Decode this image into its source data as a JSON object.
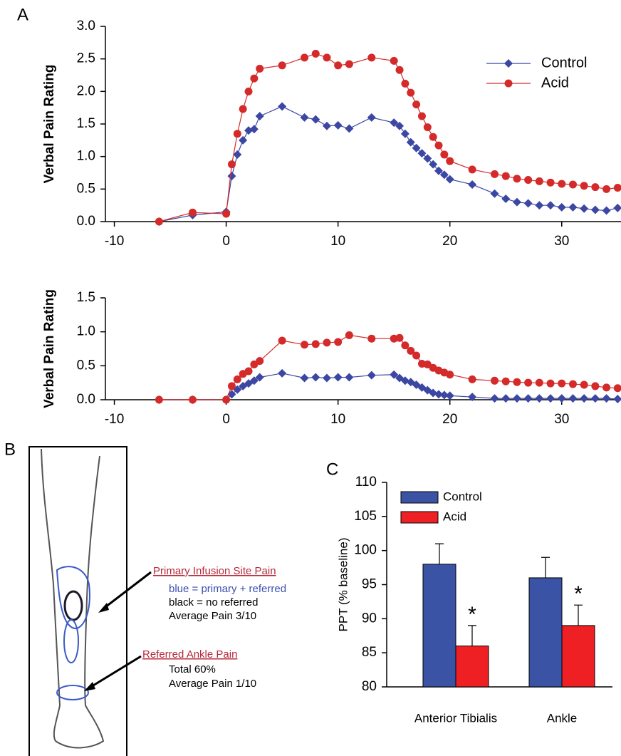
{
  "panel_labels": [
    "A",
    "B",
    "C"
  ],
  "chart_data": [
    {
      "type": "line",
      "y_label": "Verbal Pain Rating",
      "xlim": [
        -10.8,
        35.3
      ],
      "xticks": [
        -10,
        0,
        10,
        20,
        30
      ],
      "ylim": [
        0,
        3
      ],
      "yticks": [
        {
          "value": 0,
          "label": "0.0"
        },
        0.5,
        {
          "value": 1,
          "label": "1.0"
        },
        1.5,
        {
          "value": 2,
          "label": "2.0"
        },
        2.5,
        {
          "value": 3,
          "label": "3.0"
        }
      ],
      "legend": "upper right",
      "x": [
        -6,
        -3,
        0,
        0.5,
        1,
        1.5,
        2,
        2.5,
        3,
        5,
        7,
        8,
        9,
        10,
        11,
        13,
        15,
        15.5,
        16,
        16.5,
        17,
        17.5,
        18,
        18.5,
        19,
        19.5,
        20,
        22,
        24,
        25,
        26,
        27,
        28,
        29,
        30,
        31,
        32,
        33,
        34,
        35
      ],
      "series": [
        {
          "name": "Control",
          "color": "#3b47a3",
          "marker": "diamond",
          "values": [
            0,
            0.1,
            0.15,
            0.7,
            1.03,
            1.25,
            1.4,
            1.42,
            1.62,
            1.77,
            1.6,
            1.57,
            1.47,
            1.48,
            1.43,
            1.6,
            1.52,
            1.47,
            1.35,
            1.22,
            1.13,
            1.05,
            0.97,
            0.88,
            0.78,
            0.72,
            0.65,
            0.57,
            0.43,
            0.35,
            0.3,
            0.28,
            0.25,
            0.25,
            0.22,
            0.22,
            0.2,
            0.18,
            0.17,
            0.21
          ]
        },
        {
          "name": "Acid",
          "color": "#d42a2a",
          "marker": "circle",
          "values": [
            0,
            0.14,
            0.12,
            0.88,
            1.35,
            1.73,
            2.0,
            2.2,
            2.35,
            2.4,
            2.52,
            2.58,
            2.52,
            2.4,
            2.42,
            2.52,
            2.47,
            2.33,
            2.12,
            1.98,
            1.8,
            1.62,
            1.45,
            1.3,
            1.17,
            1.03,
            0.93,
            0.8,
            0.73,
            0.7,
            0.66,
            0.64,
            0.62,
            0.6,
            0.58,
            0.57,
            0.55,
            0.53,
            0.5,
            0.52
          ]
        }
      ]
    },
    {
      "type": "line",
      "y_label": "Verbal Pain Rating",
      "xlim": [
        -10.8,
        35.3
      ],
      "xticks": [
        -10,
        0,
        10,
        20,
        30
      ],
      "ylim": [
        0,
        1.5
      ],
      "yticks": [
        {
          "value": 0,
          "label": "0.0"
        },
        0.5,
        {
          "value": 1,
          "label": "1.0"
        },
        1.5
      ],
      "x": [
        -6,
        -3,
        0,
        0.5,
        1,
        1.5,
        2,
        2.5,
        3,
        5,
        7,
        8,
        9,
        10,
        11,
        13,
        15,
        15.5,
        16,
        16.5,
        17,
        17.5,
        18,
        18.5,
        19,
        19.5,
        20,
        22,
        24,
        25,
        26,
        27,
        28,
        29,
        30,
        31,
        32,
        33,
        34,
        35
      ],
      "series": [
        {
          "name": "Control",
          "color": "#3b47a3",
          "marker": "diamond",
          "values": [
            0,
            0,
            0,
            0.08,
            0.15,
            0.2,
            0.24,
            0.28,
            0.33,
            0.39,
            0.32,
            0.33,
            0.32,
            0.33,
            0.33,
            0.36,
            0.37,
            0.32,
            0.28,
            0.26,
            0.22,
            0.18,
            0.14,
            0.1,
            0.08,
            0.07,
            0.06,
            0.04,
            0.02,
            0.02,
            0.02,
            0.02,
            0.02,
            0.02,
            0.02,
            0.02,
            0.02,
            0.02,
            0.02,
            0.01
          ]
        },
        {
          "name": "Acid",
          "color": "#d42a2a",
          "marker": "circle",
          "values": [
            0,
            0,
            0,
            0.2,
            0.3,
            0.38,
            0.42,
            0.52,
            0.57,
            0.87,
            0.81,
            0.82,
            0.84,
            0.85,
            0.95,
            0.9,
            0.9,
            0.91,
            0.8,
            0.72,
            0.65,
            0.53,
            0.52,
            0.47,
            0.43,
            0.4,
            0.37,
            0.3,
            0.28,
            0.27,
            0.26,
            0.25,
            0.25,
            0.24,
            0.24,
            0.23,
            0.22,
            0.2,
            0.18,
            0.17
          ]
        }
      ]
    },
    {
      "type": "bar",
      "y_label": "PPT (% baseline)",
      "categories": [
        "Anterior Tibialis",
        "Ankle"
      ],
      "ylim": [
        80,
        110
      ],
      "yticks": [
        80,
        85,
        90,
        95,
        100,
        105,
        110
      ],
      "legend": "upper left",
      "series": [
        {
          "name": "Control",
          "color": "#3a53a4",
          "values": [
            98,
            96
          ],
          "errors": [
            3,
            3
          ]
        },
        {
          "name": "Acid",
          "color": "#ee2024",
          "values": [
            86,
            89
          ],
          "errors": [
            3,
            3
          ],
          "significance": [
            "*",
            "*"
          ]
        }
      ]
    }
  ],
  "diagram": {
    "primary": {
      "title": "Primary Infusion Site Pain",
      "lines": [
        "blue = primary + referred",
        "black = no referred",
        "Average Pain 3/10"
      ]
    },
    "referred": {
      "title": "Referred Ankle Pain",
      "lines": [
        "Total 60%",
        "Average Pain 1/10"
      ]
    }
  }
}
